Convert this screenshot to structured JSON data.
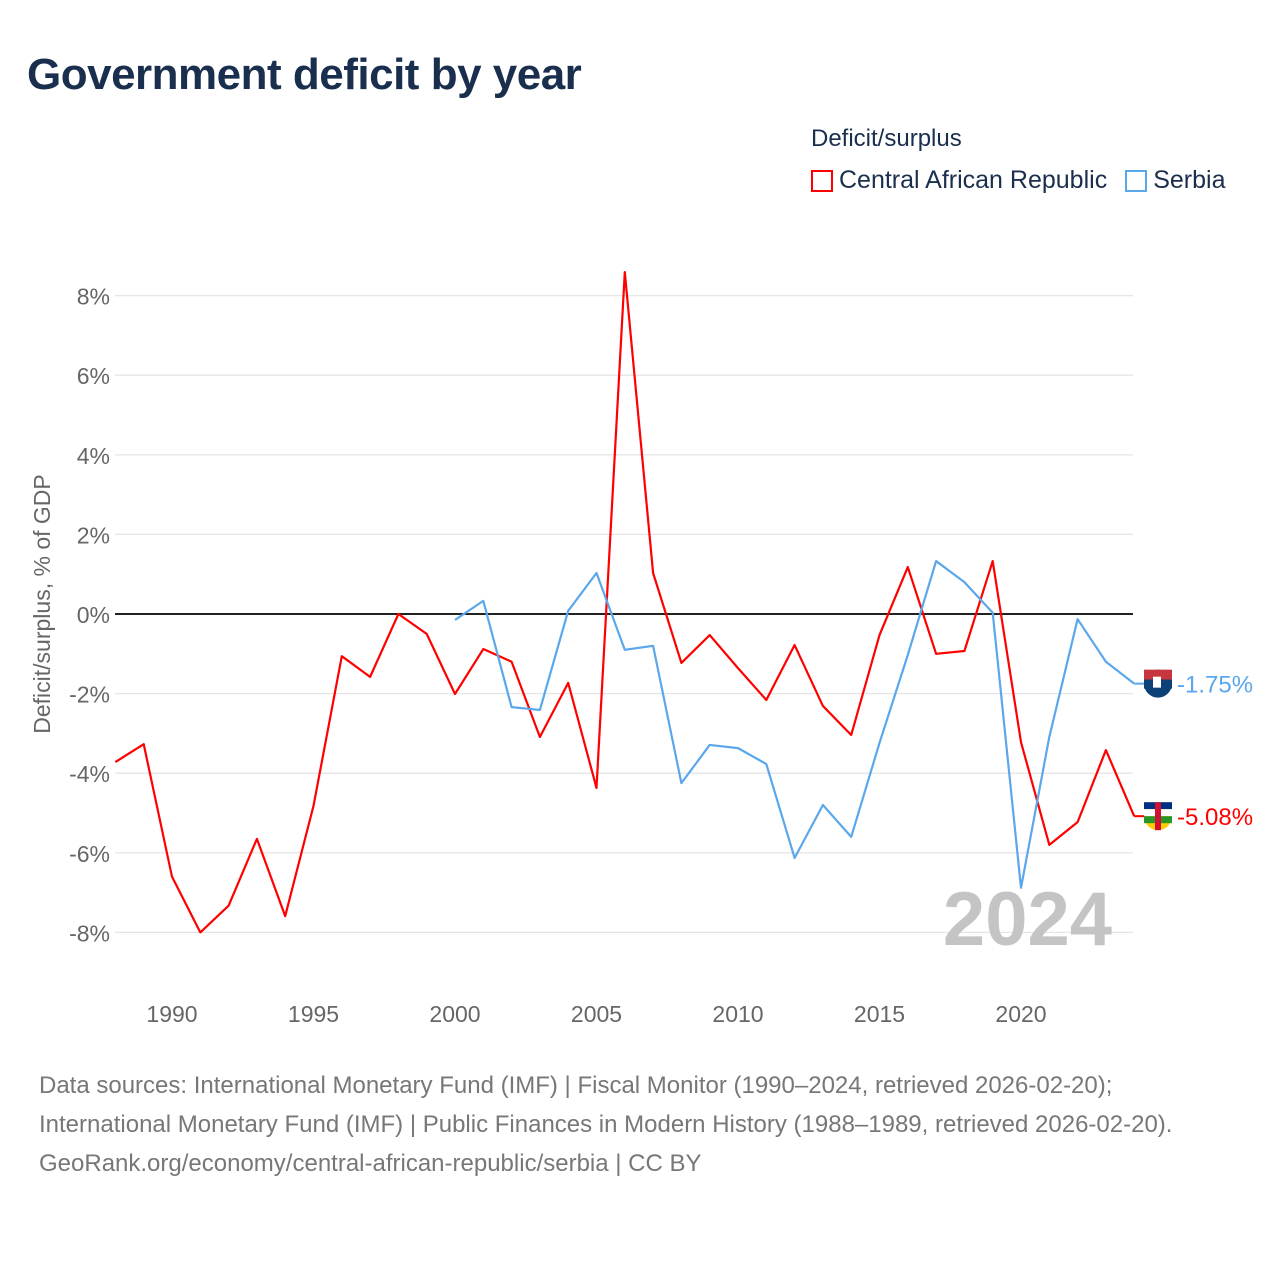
{
  "title": "Government deficit by year",
  "legend": {
    "title": "Deficit/surplus",
    "items": [
      {
        "label": "Central African Republic",
        "color": "#ff0000"
      },
      {
        "label": "Serbia",
        "color": "#5aa7ec"
      }
    ]
  },
  "chart_data": {
    "type": "line",
    "title": "Government deficit by year",
    "xlabel": "",
    "ylabel": "Deficit/surplus, % of GDP",
    "xlim": [
      1988,
      2024
    ],
    "ylim": [
      -9,
      9
    ],
    "x_ticks": [
      1990,
      1995,
      2000,
      2005,
      2010,
      2015,
      2020
    ],
    "y_ticks": [
      8,
      6,
      4,
      2,
      0,
      -2,
      -4,
      -6,
      -8
    ],
    "y_tick_labels": [
      "8%",
      "6%",
      "4%",
      "2%",
      "0%",
      "-2%",
      "-4%",
      "-6%",
      "-8%"
    ],
    "grid": true,
    "year_watermark": "2024",
    "series": [
      {
        "name": "Central African Republic",
        "color": "#ff0000",
        "end_label": "-5.08%",
        "x": [
          1988,
          1989,
          1990,
          1991,
          1992,
          1993,
          1994,
          1995,
          1996,
          1997,
          1998,
          1999,
          2000,
          2001,
          2002,
          2003,
          2004,
          2005,
          2006,
          2007,
          2008,
          2009,
          2010,
          2011,
          2012,
          2013,
          2014,
          2015,
          2016,
          2017,
          2018,
          2019,
          2020,
          2021,
          2022,
          2023,
          2024
        ],
        "values": [
          -3.72,
          -3.27,
          -6.6,
          -8.0,
          -7.33,
          -5.65,
          -7.59,
          -4.82,
          -1.06,
          -1.58,
          0.0,
          -0.5,
          -2.01,
          -0.88,
          -1.2,
          -3.09,
          -1.73,
          -4.37,
          8.59,
          1.03,
          -1.23,
          -0.53,
          -1.36,
          -2.16,
          -0.78,
          -2.31,
          -3.04,
          -0.53,
          1.18,
          -1.0,
          -0.93,
          1.33,
          -3.22,
          -5.8,
          -5.23,
          -3.42,
          -5.08
        ]
      },
      {
        "name": "Serbia",
        "color": "#5aa7ec",
        "end_label": "-1.75%",
        "x": [
          2000,
          2001,
          2002,
          2003,
          2004,
          2005,
          2006,
          2007,
          2008,
          2009,
          2010,
          2011,
          2012,
          2013,
          2014,
          2015,
          2016,
          2017,
          2018,
          2019,
          2020,
          2021,
          2022,
          2023,
          2024
        ],
        "values": [
          -0.15,
          0.33,
          -2.34,
          -2.41,
          0.08,
          1.03,
          -0.9,
          -0.8,
          -4.25,
          -3.29,
          -3.37,
          -3.77,
          -6.13,
          -4.8,
          -5.6,
          -3.24,
          -1.03,
          1.33,
          0.8,
          0.03,
          -6.88,
          -3.09,
          -0.13,
          -1.2,
          -1.75
        ]
      }
    ]
  },
  "footer": {
    "sources": "Data sources: International Monetary Fund (IMF) | Fiscal Monitor (1990–2024, retrieved 2026-02-20); International Monetary Fund (IMF) | Public Finances in Modern History (1988–1989, retrieved 2026-02-20).",
    "link": "GeoRank.org/economy/central-african-republic/serbia | CC BY"
  }
}
